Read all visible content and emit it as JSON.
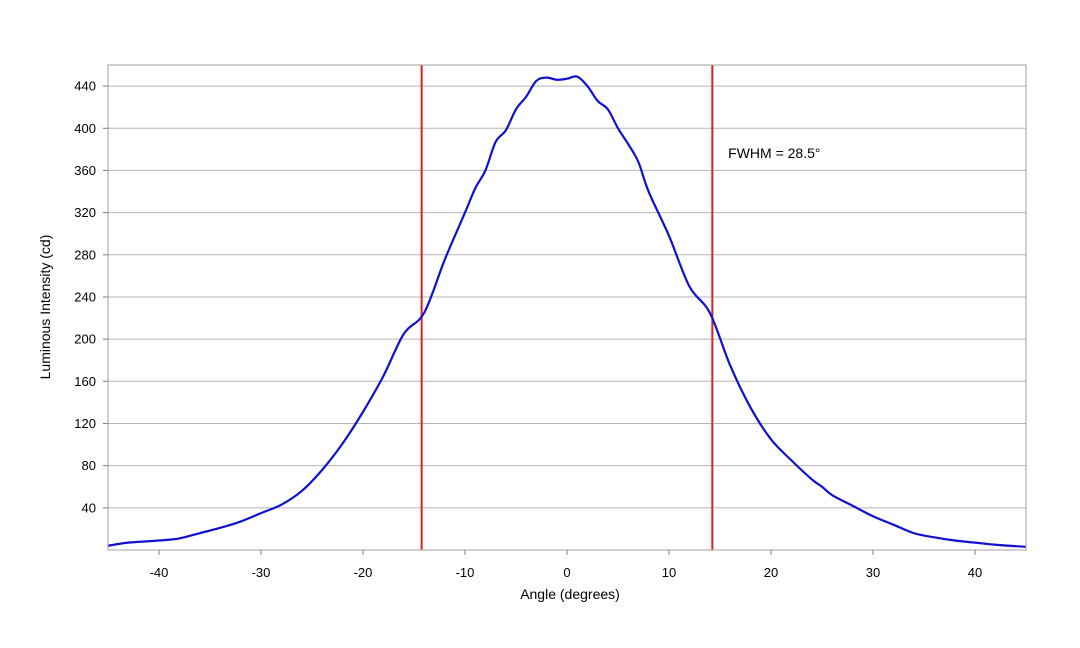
{
  "chart_data": {
    "type": "line",
    "title": "",
    "xlabel": "Angle (degrees)",
    "ylabel": "Luminous Intensity (cd)",
    "xlim": [
      -45,
      45
    ],
    "ylim": [
      0,
      460
    ],
    "xticks": [
      -40,
      -30,
      -20,
      -10,
      0,
      10,
      20,
      30,
      40
    ],
    "yticks": [
      40,
      80,
      120,
      160,
      200,
      240,
      280,
      320,
      360,
      400,
      440
    ],
    "grid": "horizontal",
    "legend": "none",
    "series": [
      {
        "color": "#1010d0",
        "x": [
          -45,
          -43,
          -40,
          -38,
          -36,
          -34,
          -32,
          -30,
          -28,
          -26,
          -24,
          -22,
          -20,
          -18,
          -16,
          -14,
          -12,
          -10,
          -9,
          -8,
          -7,
          -6,
          -5,
          -4,
          -3,
          -2,
          -1,
          0,
          1,
          2,
          3,
          4,
          5,
          6,
          7,
          8,
          10,
          12,
          14,
          16,
          18,
          20,
          22,
          24,
          25,
          26,
          28,
          30,
          32,
          34,
          36,
          38,
          40,
          42,
          45
        ],
        "y": [
          4,
          7,
          9,
          11,
          16,
          21,
          27,
          35,
          43,
          56,
          76,
          101,
          131,
          165,
          205,
          225,
          275,
          320,
          343,
          360,
          387,
          398,
          418,
          430,
          445,
          448,
          446,
          447,
          449,
          440,
          426,
          418,
          400,
          385,
          368,
          340,
          298,
          250,
          225,
          175,
          135,
          105,
          85,
          67,
          60,
          52,
          42,
          32,
          24,
          16,
          12,
          9,
          7,
          5,
          3
        ]
      }
    ],
    "vlines": [
      {
        "x": -14.25,
        "color": "#e02020"
      },
      {
        "x": 14.25,
        "color": "#e02020"
      }
    ],
    "annotations": [
      {
        "text": "FWHM = 28.5°",
        "x": 15.8,
        "y": 372
      }
    ]
  }
}
